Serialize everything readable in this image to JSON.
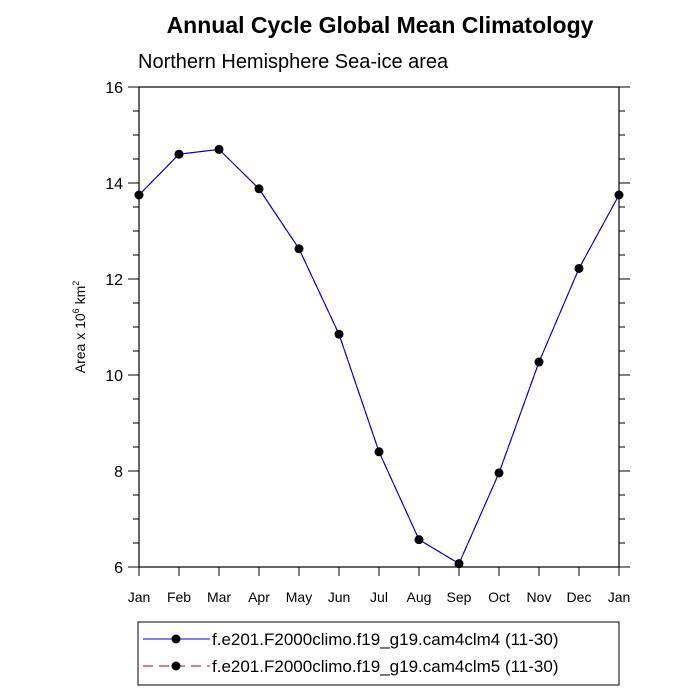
{
  "chart_data": {
    "type": "line",
    "title": "Annual Cycle Global Mean Climatology",
    "subtitle": "Northern Hemisphere Sea-ice area",
    "ylabel_prefix": "Area x 10",
    "ylabel_exp": "6",
    "ylabel_unit": " km",
    "ylabel_unit_exp": "2",
    "xlabel": "",
    "categories": [
      "Jan",
      "Feb",
      "Mar",
      "Apr",
      "May",
      "Jun",
      "Jul",
      "Aug",
      "Sep",
      "Oct",
      "Nov",
      "Dec",
      "Jan"
    ],
    "ylim": [
      6,
      16
    ],
    "yticks": [
      6,
      8,
      10,
      12,
      14,
      16
    ],
    "series": [
      {
        "name": "f.e201.F2000climo.f19_g19.cam4clm4 (11-30)",
        "color": "#0000cc",
        "dash": "solid",
        "values": [
          13.75,
          14.6,
          14.7,
          13.88,
          12.63,
          10.85,
          8.4,
          6.57,
          6.07,
          7.96,
          10.27,
          12.22,
          13.75
        ]
      },
      {
        "name": "f.e201.F2000climo.f19_g19.cam4clm5 (11-30)",
        "color": "#cc0000",
        "dash": "dashed",
        "values": [
          13.75,
          14.6,
          14.7,
          13.88,
          12.63,
          10.85,
          8.4,
          6.57,
          6.07,
          7.96,
          10.27,
          12.22,
          13.75
        ]
      }
    ],
    "legend_position": "bottom"
  }
}
